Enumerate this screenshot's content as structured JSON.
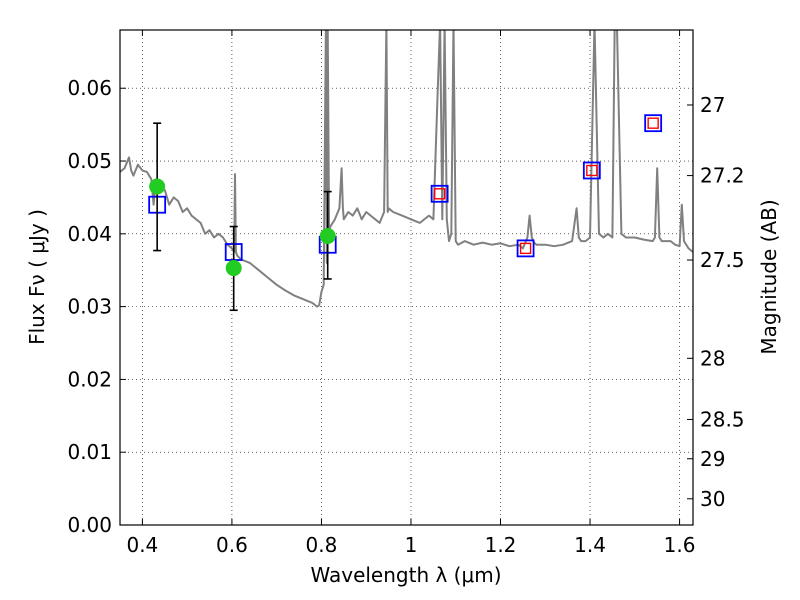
{
  "chart_data": {
    "type": "scatter",
    "xlabel": "Wavelength  λ (μm)",
    "ylabel": "Flux  Fν  ( μJy )",
    "ylabel_right": "Magnitude (AB)",
    "xlim": [
      0.35,
      1.63
    ],
    "ylim": [
      0.0,
      0.068
    ],
    "grid": true,
    "x_ticks": [
      0.4,
      0.6,
      0.8,
      1.0,
      1.2,
      1.4,
      1.6
    ],
    "x_tick_labels": [
      "0.4",
      "0.6",
      "0.8",
      "1",
      "1.2",
      "1.4",
      "1.6"
    ],
    "y_ticks": [
      0.0,
      0.01,
      0.02,
      0.03,
      0.04,
      0.05,
      0.06
    ],
    "y_tick_labels": [
      "0.00",
      "0.01",
      "0.02",
      "0.03",
      "0.04",
      "0.05",
      "0.06"
    ],
    "right_ticks": [
      {
        "label": "27",
        "flux": 0.0577
      },
      {
        "label": "27.2",
        "flux": 0.048
      },
      {
        "label": "27.5",
        "flux": 0.0364
      },
      {
        "label": "28",
        "flux": 0.0229
      },
      {
        "label": "28.5",
        "flux": 0.0145
      },
      {
        "label": "29",
        "flux": 0.0091
      },
      {
        "label": "30",
        "flux": 0.0036
      }
    ],
    "series": [
      {
        "kind": "model_spectrum",
        "color": "#808080",
        "x": [
          0.35,
          0.36,
          0.37,
          0.375,
          0.38,
          0.39,
          0.4,
          0.41,
          0.42,
          0.425,
          0.43,
          0.44,
          0.45,
          0.46,
          0.47,
          0.48,
          0.49,
          0.5,
          0.51,
          0.52,
          0.53,
          0.54,
          0.55,
          0.56,
          0.57,
          0.58,
          0.59,
          0.6,
          0.605,
          0.607,
          0.609,
          0.612,
          0.62,
          0.64,
          0.66,
          0.68,
          0.7,
          0.72,
          0.74,
          0.76,
          0.78,
          0.79,
          0.795,
          0.8,
          0.805,
          0.81,
          0.812,
          0.814,
          0.817,
          0.82,
          0.83,
          0.84,
          0.845,
          0.848,
          0.85,
          0.86,
          0.87,
          0.88,
          0.89,
          0.9,
          0.92,
          0.93,
          0.94,
          0.945,
          0.948,
          0.95,
          0.96,
          0.98,
          1.0,
          1.02,
          1.04,
          1.05,
          1.06,
          1.065,
          1.07,
          1.075,
          1.08,
          1.085,
          1.09,
          1.095,
          1.1,
          1.105,
          1.12,
          1.14,
          1.16,
          1.18,
          1.2,
          1.22,
          1.24,
          1.25,
          1.26,
          1.265,
          1.27,
          1.275,
          1.28,
          1.3,
          1.32,
          1.34,
          1.36,
          1.37,
          1.375,
          1.38,
          1.39,
          1.4,
          1.41,
          1.42,
          1.43,
          1.44,
          1.45,
          1.455,
          1.46,
          1.47,
          1.48,
          1.5,
          1.52,
          1.54,
          1.545,
          1.55,
          1.555,
          1.56,
          1.57,
          1.58,
          1.59,
          1.6,
          1.605,
          1.61,
          1.62,
          1.63
        ],
        "y": [
          0.0485,
          0.049,
          0.0505,
          0.0487,
          0.048,
          0.0495,
          0.0487,
          0.0485,
          0.0475,
          0.044,
          0.0475,
          0.046,
          0.046,
          0.044,
          0.045,
          0.0445,
          0.043,
          0.0435,
          0.0425,
          0.042,
          0.0415,
          0.04,
          0.0405,
          0.0395,
          0.04,
          0.0395,
          0.0385,
          0.038,
          0.0375,
          0.0482,
          0.0375,
          0.037,
          0.0365,
          0.036,
          0.035,
          0.034,
          0.033,
          0.0322,
          0.0315,
          0.031,
          0.0305,
          0.03,
          0.0302,
          0.032,
          0.033,
          0.069,
          0.036,
          0.069,
          0.04,
          0.041,
          0.042,
          0.0435,
          0.049,
          0.0435,
          0.042,
          0.043,
          0.0425,
          0.0435,
          0.042,
          0.043,
          0.042,
          0.0415,
          0.043,
          0.069,
          0.043,
          0.0435,
          0.043,
          0.0425,
          0.042,
          0.0415,
          0.0425,
          0.042,
          0.06,
          0.069,
          0.042,
          0.069,
          0.042,
          0.039,
          0.04,
          0.069,
          0.039,
          0.0385,
          0.039,
          0.0385,
          0.0388,
          0.0385,
          0.0387,
          0.0383,
          0.0385,
          0.038,
          0.0395,
          0.0425,
          0.0395,
          0.0388,
          0.0385,
          0.0385,
          0.0383,
          0.0385,
          0.039,
          0.0435,
          0.0395,
          0.039,
          0.039,
          0.0395,
          0.069,
          0.04,
          0.0395,
          0.04,
          0.0395,
          0.069,
          0.069,
          0.04,
          0.0395,
          0.0395,
          0.0392,
          0.039,
          0.0395,
          0.049,
          0.0395,
          0.039,
          0.039,
          0.039,
          0.0385,
          0.0383,
          0.044,
          0.039,
          0.038,
          0.0375
        ]
      },
      {
        "kind": "model_photometry",
        "shape": "square",
        "color": "#0000ff",
        "x": [
          0.433,
          0.604,
          0.814,
          1.064,
          1.256,
          1.404,
          1.541
        ],
        "y": [
          0.044,
          0.0375,
          0.0385,
          0.0455,
          0.038,
          0.0487,
          0.0552
        ]
      },
      {
        "kind": "synthetic_photometry",
        "shape": "square",
        "color": "#ff0000",
        "x": [
          1.064,
          1.256,
          1.404,
          1.541
        ],
        "y": [
          0.0455,
          0.038,
          0.0487,
          0.0552
        ]
      },
      {
        "kind": "observed",
        "shape": "circle",
        "color": "#22cc22",
        "x": [
          0.433,
          0.604,
          0.814
        ],
        "y": [
          0.0465,
          0.0353,
          0.0397
        ],
        "yerr_low": [
          0.0377,
          0.0295,
          0.0338
        ],
        "yerr_high": [
          0.0552,
          0.041,
          0.0458
        ]
      }
    ]
  }
}
